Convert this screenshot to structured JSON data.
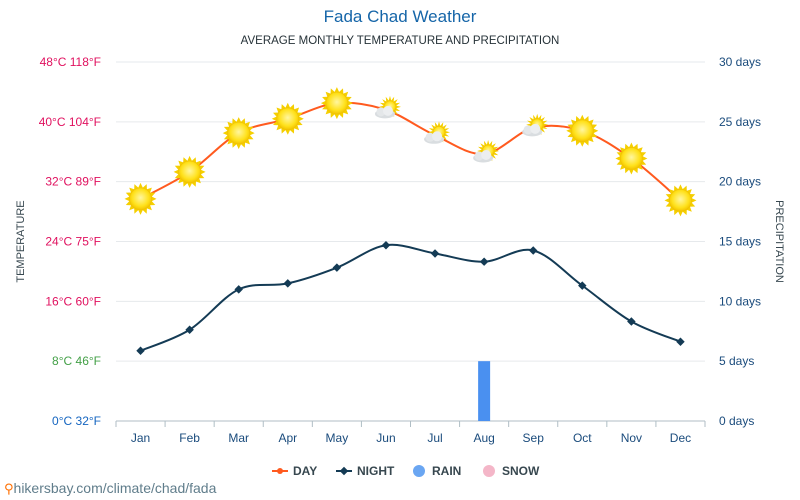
{
  "title": "Fada Chad Weather",
  "subtitle": "AVERAGE MONTHLY TEMPERATURE AND PRECIPITATION",
  "credit": "hikersbay.com/climate/chad/fada",
  "colors": {
    "day": "#ff5a1f",
    "night": "#143b55",
    "rain": "#4a90f0",
    "snow": "#f4b6c8",
    "title": "#1565a8",
    "axis_blue": "#1a4b7c",
    "sun": "#ffe11a"
  },
  "chart_data": {
    "type": "line",
    "categories": [
      "Jan",
      "Feb",
      "Mar",
      "Apr",
      "May",
      "Jun",
      "Jul",
      "Aug",
      "Sep",
      "Oct",
      "Nov",
      "Dec"
    ],
    "y_left": {
      "label": "TEMPERATURE",
      "range": [
        0,
        48
      ],
      "ticks": [
        {
          "value": 0,
          "label": "0°C 32°F",
          "color": "#1565c0"
        },
        {
          "value": 8,
          "label": "8°C 46°F",
          "color": "#43a047"
        },
        {
          "value": 16,
          "label": "16°C 60°F",
          "color": "#e0115f"
        },
        {
          "value": 24,
          "label": "24°C 75°F",
          "color": "#e0115f"
        },
        {
          "value": 32,
          "label": "32°C 89°F",
          "color": "#e0115f"
        },
        {
          "value": 40,
          "label": "40°C 104°F",
          "color": "#e0115f"
        },
        {
          "value": 48,
          "label": "48°C 118°F",
          "color": "#e0115f"
        }
      ]
    },
    "y_right": {
      "label": "PRECIPITATION",
      "range": [
        0,
        30
      ],
      "ticks": [
        {
          "value": 0,
          "label": "0 days"
        },
        {
          "value": 5,
          "label": "5 days"
        },
        {
          "value": 10,
          "label": "10 days"
        },
        {
          "value": 15,
          "label": "15 days"
        },
        {
          "value": 20,
          "label": "20 days"
        },
        {
          "value": 25,
          "label": "25 days"
        },
        {
          "value": 30,
          "label": "30 days"
        }
      ]
    },
    "series": [
      {
        "name": "DAY",
        "values": [
          29.7,
          33.3,
          38.5,
          40.4,
          42.5,
          41.6,
          38.2,
          35.7,
          39.2,
          38.8,
          35.1,
          29.5
        ]
      },
      {
        "name": "NIGHT",
        "values": [
          9.4,
          12.2,
          17.6,
          18.4,
          20.5,
          23.5,
          22.4,
          21.3,
          22.8,
          18.1,
          13.3,
          10.6
        ]
      },
      {
        "name": "RAIN",
        "values": [
          0,
          0,
          0,
          0,
          0,
          0,
          0,
          5,
          0,
          0,
          0,
          0
        ]
      },
      {
        "name": "SNOW",
        "values": [
          0,
          0,
          0,
          0,
          0,
          0,
          0,
          0,
          0,
          0,
          0,
          0
        ]
      }
    ],
    "weather_icons": [
      "sun-icon",
      "sun-icon",
      "sun-icon",
      "sun-icon",
      "sun-icon",
      "partly-cloudy-icon",
      "partly-cloudy-icon",
      "partly-cloudy-icon",
      "partly-cloudy-icon",
      "sun-icon",
      "sun-icon",
      "sun-icon"
    ],
    "grid": true,
    "legend_position": "bottom"
  }
}
